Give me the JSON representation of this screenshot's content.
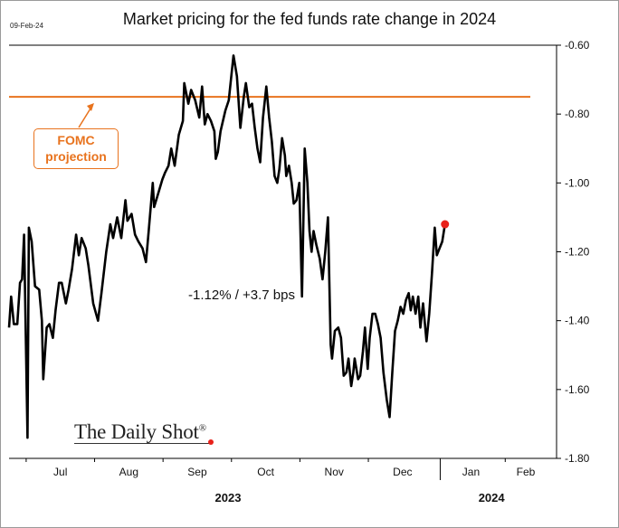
{
  "header": {
    "date_stamp": "09-Feb-24",
    "title": "Market pricing for the fed funds rate change in 2024"
  },
  "annotations": {
    "fomc_line1": "FOMC",
    "fomc_line2": "projection",
    "current_value": "-1.12%  /  +3.7 bps"
  },
  "brand": {
    "name": "The Daily Shot",
    "mark": "®"
  },
  "colors": {
    "series": "#000000",
    "projection": "#e8731e",
    "endpoint": "#e8211a"
  },
  "chart_data": {
    "type": "line",
    "title": "Market pricing for the fed funds rate change in 2024",
    "xlabel": "",
    "ylabel": "",
    "ylim": [
      -1.8,
      -0.6
    ],
    "yticks": [
      -0.6,
      -0.8,
      -1.0,
      -1.2,
      -1.4,
      -1.6,
      -1.8
    ],
    "ytick_labels": [
      "-0.60",
      "-0.80",
      "-1.00",
      "-1.20",
      "-1.40",
      "-1.60",
      "-1.80"
    ],
    "y_axis_side": "right",
    "xlim": [
      0,
      8.0
    ],
    "xticks": [
      {
        "label": "Jul",
        "pos": 0.75
      },
      {
        "label": "Aug",
        "pos": 1.75
      },
      {
        "label": "Sep",
        "pos": 2.75
      },
      {
        "label": "Oct",
        "pos": 3.75
      },
      {
        "label": "Nov",
        "pos": 4.75
      },
      {
        "label": "Dec",
        "pos": 5.75
      },
      {
        "label": "Jan",
        "pos": 6.75
      },
      {
        "label": "Feb",
        "pos": 7.55
      }
    ],
    "year_labels": [
      {
        "label": "2023",
        "pos": 3.2
      },
      {
        "label": "2024",
        "pos": 7.05
      }
    ],
    "year_divider": 6.3,
    "month_dividers": [
      0.25,
      1.25,
      2.25,
      3.25,
      4.25,
      5.25,
      7.25
    ],
    "fomc_projection": -0.75,
    "series": [
      {
        "values": [
          [
            0.0,
            -1.42
          ],
          [
            0.03,
            -1.33
          ],
          [
            0.07,
            -1.41
          ],
          [
            0.12,
            -1.41
          ],
          [
            0.16,
            -1.29
          ],
          [
            0.19,
            -1.28
          ],
          [
            0.22,
            -1.15
          ],
          [
            0.27,
            -1.74
          ],
          [
            0.29,
            -1.13
          ],
          [
            0.33,
            -1.17
          ],
          [
            0.38,
            -1.3
          ],
          [
            0.44,
            -1.31
          ],
          [
            0.48,
            -1.4
          ],
          [
            0.5,
            -1.57
          ],
          [
            0.55,
            -1.42
          ],
          [
            0.59,
            -1.41
          ],
          [
            0.64,
            -1.45
          ],
          [
            0.68,
            -1.37
          ],
          [
            0.73,
            -1.29
          ],
          [
            0.77,
            -1.29
          ],
          [
            0.83,
            -1.35
          ],
          [
            0.87,
            -1.31
          ],
          [
            0.92,
            -1.25
          ],
          [
            0.98,
            -1.15
          ],
          [
            1.02,
            -1.21
          ],
          [
            1.06,
            -1.16
          ],
          [
            1.12,
            -1.19
          ],
          [
            1.16,
            -1.24
          ],
          [
            1.23,
            -1.35
          ],
          [
            1.3,
            -1.4
          ],
          [
            1.35,
            -1.32
          ],
          [
            1.42,
            -1.2
          ],
          [
            1.48,
            -1.12
          ],
          [
            1.52,
            -1.16
          ],
          [
            1.58,
            -1.1
          ],
          [
            1.64,
            -1.16
          ],
          [
            1.7,
            -1.05
          ],
          [
            1.73,
            -1.11
          ],
          [
            1.79,
            -1.09
          ],
          [
            1.84,
            -1.15
          ],
          [
            1.89,
            -1.17
          ],
          [
            1.95,
            -1.19
          ],
          [
            2.0,
            -1.23
          ],
          [
            2.04,
            -1.14
          ],
          [
            2.1,
            -1.0
          ],
          [
            2.12,
            -1.07
          ],
          [
            2.18,
            -1.03
          ],
          [
            2.24,
            -0.99
          ],
          [
            2.28,
            -0.97
          ],
          [
            2.33,
            -0.95
          ],
          [
            2.37,
            -0.9
          ],
          [
            2.42,
            -0.95
          ],
          [
            2.48,
            -0.86
          ],
          [
            2.54,
            -0.82
          ],
          [
            2.56,
            -0.71
          ],
          [
            2.62,
            -0.77
          ],
          [
            2.66,
            -0.73
          ],
          [
            2.72,
            -0.76
          ],
          [
            2.78,
            -0.81
          ],
          [
            2.82,
            -0.72
          ],
          [
            2.86,
            -0.83
          ],
          [
            2.9,
            -0.8
          ],
          [
            2.95,
            -0.82
          ],
          [
            3.0,
            -0.85
          ],
          [
            3.02,
            -0.93
          ],
          [
            3.05,
            -0.91
          ],
          [
            3.09,
            -0.85
          ],
          [
            3.16,
            -0.79
          ],
          [
            3.21,
            -0.76
          ],
          [
            3.28,
            -0.63
          ],
          [
            3.33,
            -0.69
          ],
          [
            3.38,
            -0.84
          ],
          [
            3.43,
            -0.75
          ],
          [
            3.46,
            -0.71
          ],
          [
            3.51,
            -0.78
          ],
          [
            3.55,
            -0.77
          ],
          [
            3.59,
            -0.84
          ],
          [
            3.63,
            -0.9
          ],
          [
            3.67,
            -0.94
          ],
          [
            3.71,
            -0.81
          ],
          [
            3.76,
            -0.72
          ],
          [
            3.8,
            -0.81
          ],
          [
            3.84,
            -0.88
          ],
          [
            3.88,
            -0.98
          ],
          [
            3.92,
            -1.0
          ],
          [
            3.95,
            -0.96
          ],
          [
            3.99,
            -0.87
          ],
          [
            4.03,
            -0.92
          ],
          [
            4.05,
            -0.98
          ],
          [
            4.09,
            -0.95
          ],
          [
            4.13,
            -1.0
          ],
          [
            4.16,
            -1.06
          ],
          [
            4.2,
            -1.05
          ],
          [
            4.24,
            -1.0
          ],
          [
            4.28,
            -1.33
          ],
          [
            4.32,
            -0.9
          ],
          [
            4.36,
            -1.0
          ],
          [
            4.39,
            -1.14
          ],
          [
            4.42,
            -1.2
          ],
          [
            4.45,
            -1.14
          ],
          [
            4.49,
            -1.18
          ],
          [
            4.54,
            -1.22
          ],
          [
            4.58,
            -1.28
          ],
          [
            4.62,
            -1.2
          ],
          [
            4.66,
            -1.1
          ],
          [
            4.7,
            -1.47
          ],
          [
            4.72,
            -1.51
          ],
          [
            4.76,
            -1.43
          ],
          [
            4.81,
            -1.42
          ],
          [
            4.85,
            -1.45
          ],
          [
            4.89,
            -1.56
          ],
          [
            4.93,
            -1.55
          ],
          [
            4.96,
            -1.51
          ],
          [
            5.0,
            -1.59
          ],
          [
            5.03,
            -1.55
          ],
          [
            5.05,
            -1.51
          ],
          [
            5.1,
            -1.57
          ],
          [
            5.13,
            -1.56
          ],
          [
            5.17,
            -1.49
          ],
          [
            5.2,
            -1.42
          ],
          [
            5.24,
            -1.54
          ],
          [
            5.27,
            -1.45
          ],
          [
            5.31,
            -1.38
          ],
          [
            5.35,
            -1.38
          ],
          [
            5.39,
            -1.41
          ],
          [
            5.43,
            -1.45
          ],
          [
            5.47,
            -1.55
          ],
          [
            5.52,
            -1.63
          ],
          [
            5.56,
            -1.68
          ],
          [
            5.6,
            -1.55
          ],
          [
            5.64,
            -1.43
          ],
          [
            5.68,
            -1.4
          ],
          [
            5.72,
            -1.36
          ],
          [
            5.76,
            -1.38
          ],
          [
            5.8,
            -1.34
          ],
          [
            5.84,
            -1.32
          ],
          [
            5.87,
            -1.37
          ],
          [
            5.9,
            -1.33
          ],
          [
            5.94,
            -1.38
          ],
          [
            5.98,
            -1.33
          ],
          [
            6.01,
            -1.42
          ],
          [
            6.05,
            -1.35
          ],
          [
            6.1,
            -1.46
          ],
          [
            6.14,
            -1.38
          ],
          [
            6.18,
            -1.26
          ],
          [
            6.22,
            -1.13
          ],
          [
            6.25,
            -1.21
          ],
          [
            6.29,
            -1.19
          ],
          [
            6.33,
            -1.17
          ],
          [
            6.37,
            -1.12
          ]
        ]
      }
    ],
    "last_value": -1.12,
    "current_value_label": "-1.12%  /  +3.7 bps"
  }
}
